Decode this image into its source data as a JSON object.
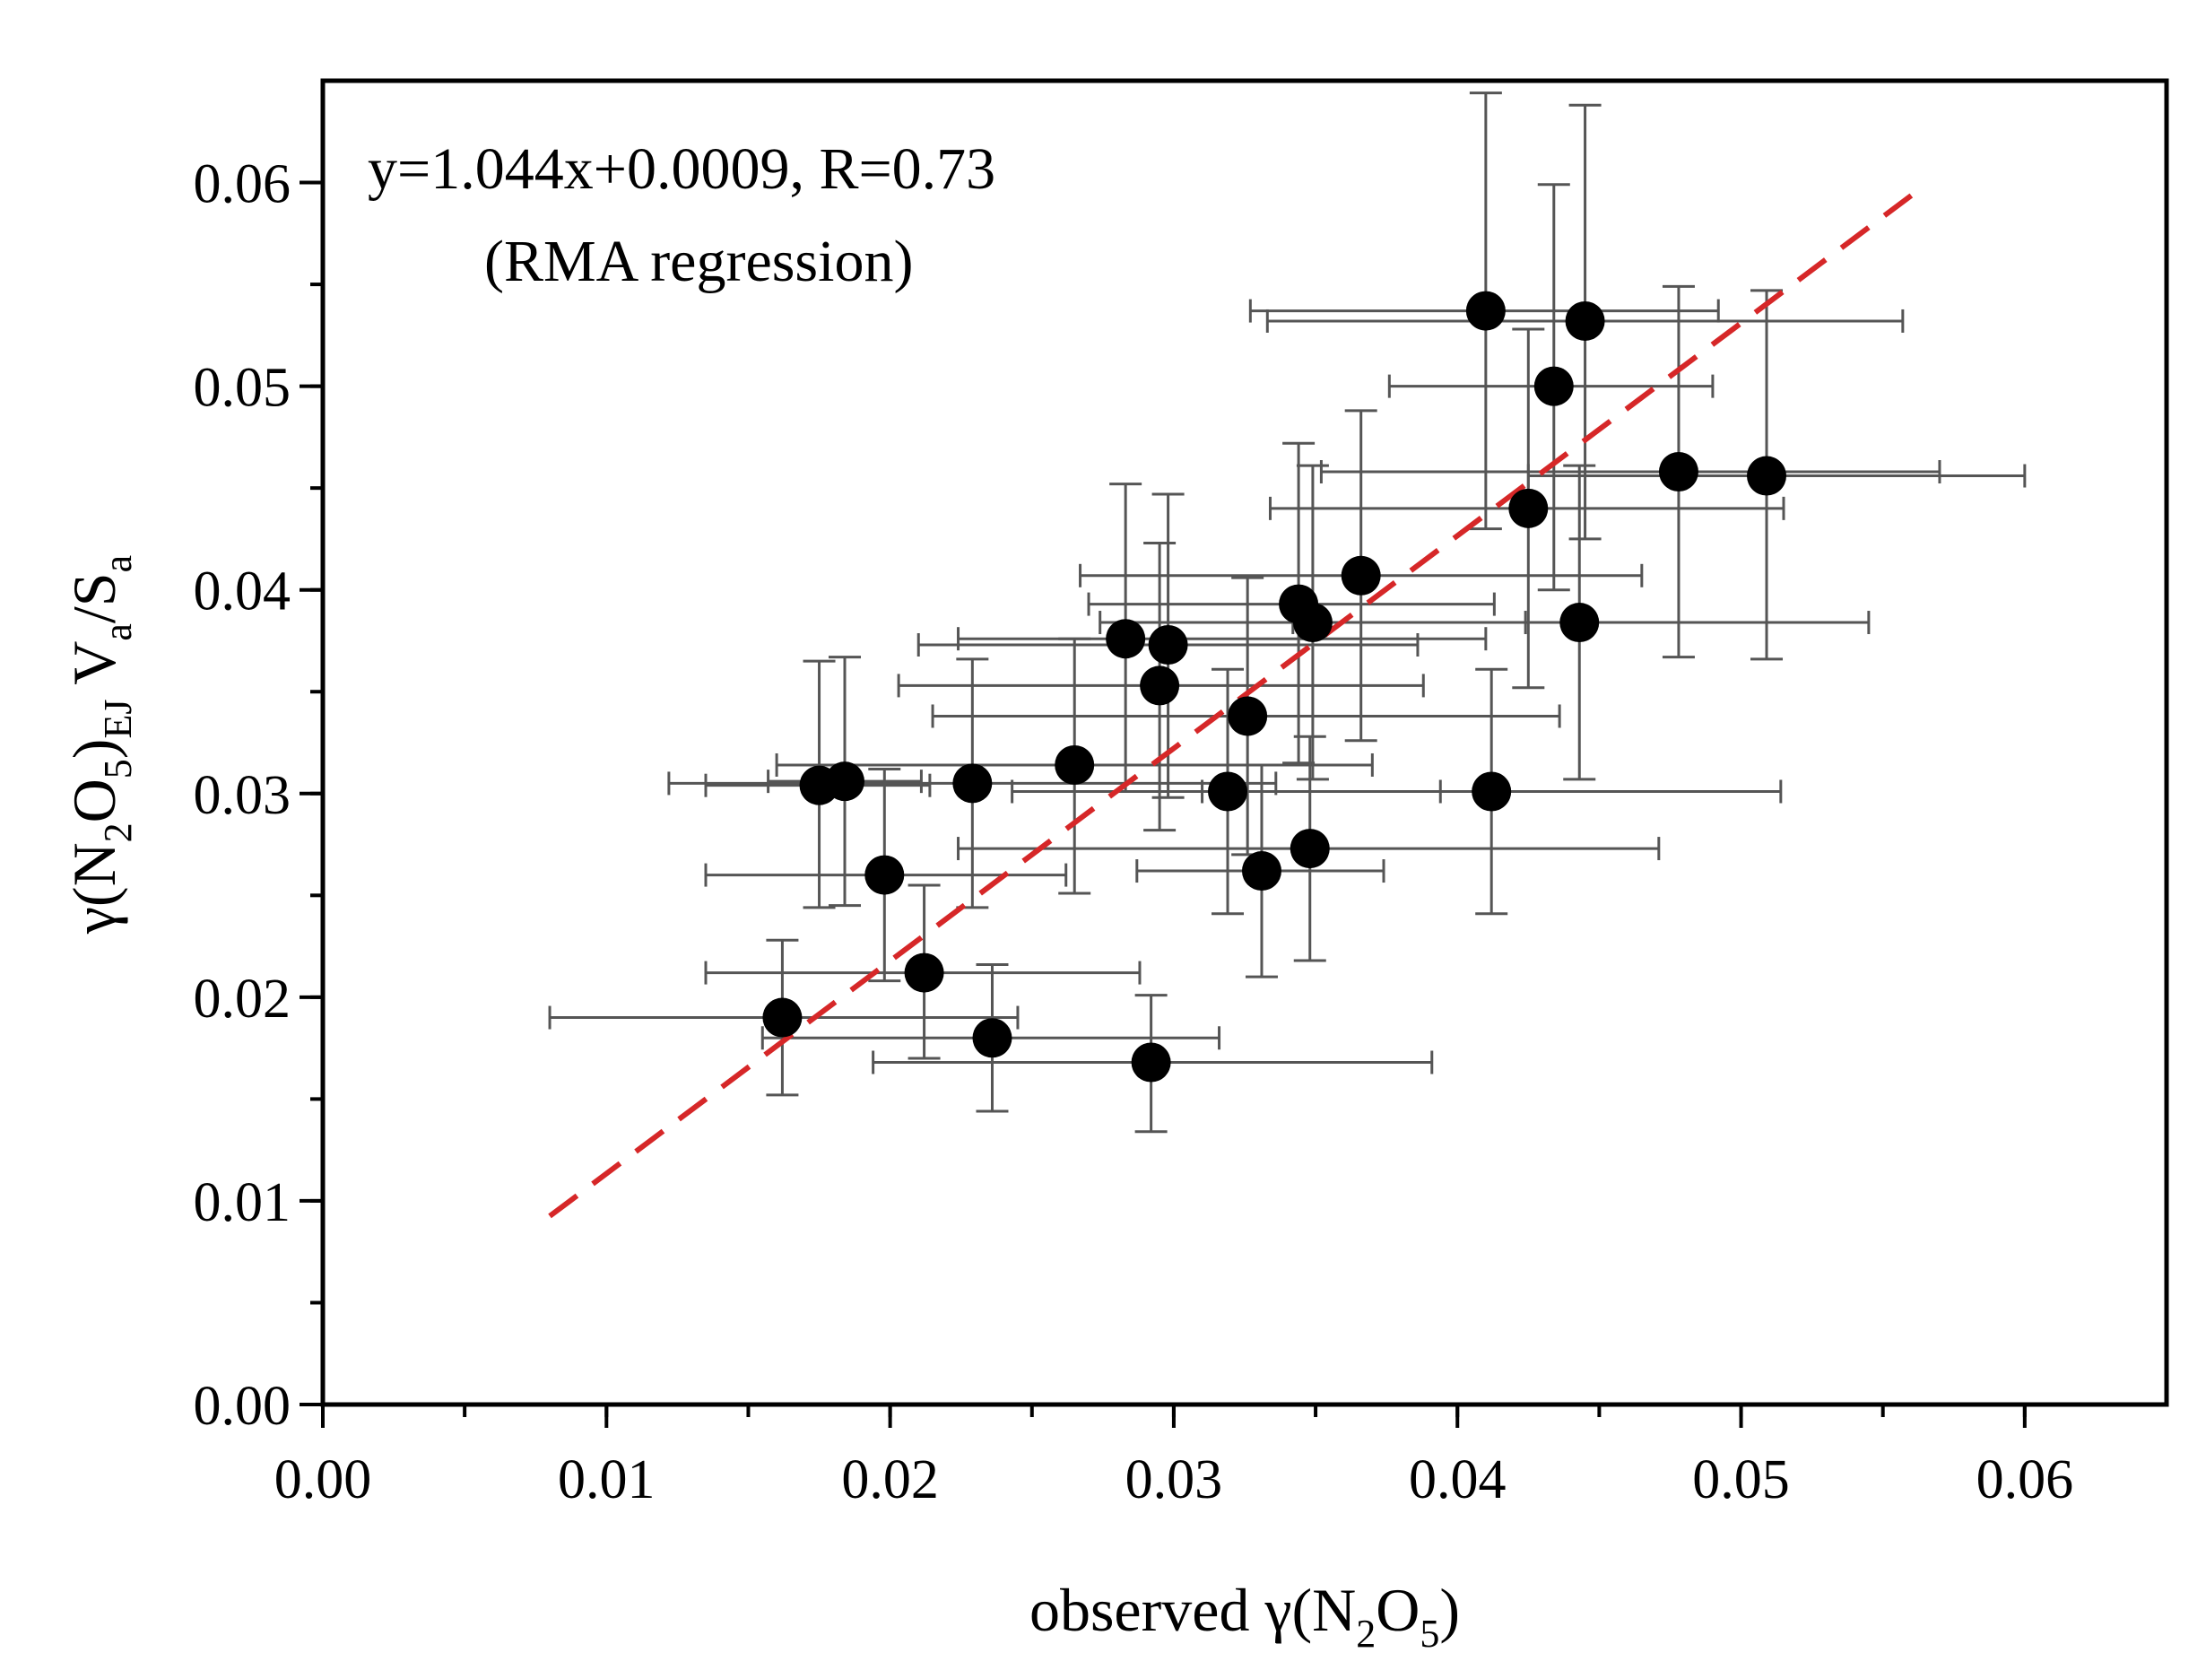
{
  "chart_data": {
    "type": "scatter",
    "annotation": {
      "equation": "y=1.044x+0.0009, R=0.73",
      "method": "(RMA regression)"
    },
    "xlabel": {
      "prefix": "observed γ(N",
      "sub1": "2",
      "mid": "O",
      "sub2": "5",
      "suffix": ")"
    },
    "ylabel": {
      "p1": "γ(N",
      "s1": "2",
      "p2": "O",
      "s2": "5",
      "p3": ")",
      "s3": "EJ",
      "p4": " V",
      "s4": "a",
      "p5": "/S",
      "s5": "a"
    },
    "xlim": [
      0,
      0.065
    ],
    "ylim": [
      0,
      0.065
    ],
    "x_ticks": [
      0,
      0.01,
      0.02,
      0.03,
      0.04,
      0.05,
      0.06
    ],
    "x_tick_labels": [
      "0.00",
      "0.01",
      "0.02",
      "0.03",
      "0.04",
      "0.05",
      "0.06"
    ],
    "y_ticks": [
      0,
      0.01,
      0.02,
      0.03,
      0.04,
      0.05,
      0.06
    ],
    "y_tick_labels": [
      "0.00",
      "0.01",
      "0.02",
      "0.03",
      "0.04",
      "0.05",
      "0.06"
    ],
    "minor_tick_step": 0.005,
    "fit_line": {
      "slope": 1.044,
      "intercept": 0.0009,
      "x_range": [
        0.008,
        0.056
      ],
      "color": "#d62728",
      "style": "dashed"
    },
    "marker_color": "#000000",
    "error_bar_color": "#555555",
    "points": [
      {
        "x": 0.041,
        "y": 0.0537,
        "xerr": [
          0.0327,
          0.0492
        ],
        "yerr": [
          0.043,
          0.0644
        ]
      },
      {
        "x": 0.0445,
        "y": 0.0532,
        "xerr": [
          0.0333,
          0.0557
        ],
        "yerr": [
          0.0425,
          0.0638
        ]
      },
      {
        "x": 0.0434,
        "y": 0.05,
        "xerr": [
          0.0376,
          0.049
        ],
        "yerr": [
          0.04,
          0.0599
        ]
      },
      {
        "x": 0.0478,
        "y": 0.0458,
        "xerr": [
          0.0352,
          0.057
        ],
        "yerr": [
          0.0367,
          0.0549
        ]
      },
      {
        "x": 0.0509,
        "y": 0.0456,
        "xerr": [
          0.0425,
          0.06
        ],
        "yerr": [
          0.0366,
          0.0547
        ]
      },
      {
        "x": 0.0425,
        "y": 0.044,
        "xerr": [
          0.0334,
          0.0515
        ],
        "yerr": [
          0.0352,
          0.0528
        ]
      },
      {
        "x": 0.0443,
        "y": 0.0384,
        "xerr": [
          0.0342,
          0.0545
        ],
        "yerr": [
          0.0307,
          0.0461
        ]
      },
      {
        "x": 0.0366,
        "y": 0.0407,
        "xerr": [
          0.0267,
          0.0465
        ],
        "yerr": [
          0.0326,
          0.0488
        ]
      },
      {
        "x": 0.0344,
        "y": 0.0393,
        "xerr": [
          0.027,
          0.0413
        ],
        "yerr": [
          0.0315,
          0.0472
        ]
      },
      {
        "x": 0.0349,
        "y": 0.0384,
        "xerr": [
          0.0274,
          0.0424
        ],
        "yerr": [
          0.0307,
          0.0461
        ]
      },
      {
        "x": 0.0283,
        "y": 0.0376,
        "xerr": [
          0.0224,
          0.041
        ],
        "yerr": [
          0.0301,
          0.0452
        ]
      },
      {
        "x": 0.0298,
        "y": 0.0373,
        "xerr": [
          0.021,
          0.0386
        ],
        "yerr": [
          0.0298,
          0.0447
        ]
      },
      {
        "x": 0.0295,
        "y": 0.0353,
        "xerr": [
          0.0203,
          0.0388
        ],
        "yerr": [
          0.0282,
          0.0423
        ]
      },
      {
        "x": 0.0326,
        "y": 0.0338,
        "xerr": [
          0.0215,
          0.0436
        ],
        "yerr": [
          0.027,
          0.0406
        ]
      },
      {
        "x": 0.0265,
        "y": 0.0314,
        "xerr": [
          0.016,
          0.037
        ],
        "yerr": [
          0.0251,
          0.0376
        ]
      },
      {
        "x": 0.0229,
        "y": 0.0305,
        "xerr": [
          0.0122,
          0.0336
        ],
        "yerr": [
          0.0244,
          0.0366
        ]
      },
      {
        "x": 0.0175,
        "y": 0.0304,
        "xerr": [
          0.0135,
          0.0214
        ],
        "yerr": [
          0.0244,
          0.0365
        ]
      },
      {
        "x": 0.0184,
        "y": 0.0306,
        "xerr": [
          0.0157,
          0.0211
        ],
        "yerr": [
          0.0245,
          0.0367
        ]
      },
      {
        "x": 0.0319,
        "y": 0.0301,
        "xerr": [
          0.0243,
          0.0394
        ],
        "yerr": [
          0.0241,
          0.0361
        ]
      },
      {
        "x": 0.0412,
        "y": 0.0301,
        "xerr": [
          0.031,
          0.0514
        ],
        "yerr": [
          0.0241,
          0.0361
        ]
      },
      {
        "x": 0.0348,
        "y": 0.0273,
        "xerr": [
          0.0224,
          0.0471
        ],
        "yerr": [
          0.0218,
          0.0328
        ]
      },
      {
        "x": 0.0331,
        "y": 0.0262,
        "xerr": [
          0.0287,
          0.0374
        ],
        "yerr": [
          0.021,
          0.0314
        ]
      },
      {
        "x": 0.0198,
        "y": 0.026,
        "xerr": [
          0.0135,
          0.0262
        ],
        "yerr": [
          0.0208,
          0.0312
        ]
      },
      {
        "x": 0.0212,
        "y": 0.0212,
        "xerr": [
          0.0135,
          0.0288
        ],
        "yerr": [
          0.017,
          0.0255
        ]
      },
      {
        "x": 0.0162,
        "y": 0.019,
        "xerr": [
          0.008,
          0.0245
        ],
        "yerr": [
          0.0152,
          0.0228
        ]
      },
      {
        "x": 0.0236,
        "y": 0.018,
        "xerr": [
          0.0155,
          0.0316
        ],
        "yerr": [
          0.0144,
          0.0216
        ]
      },
      {
        "x": 0.0292,
        "y": 0.0168,
        "xerr": [
          0.0194,
          0.0391
        ],
        "yerr": [
          0.0134,
          0.0201
        ]
      }
    ]
  }
}
